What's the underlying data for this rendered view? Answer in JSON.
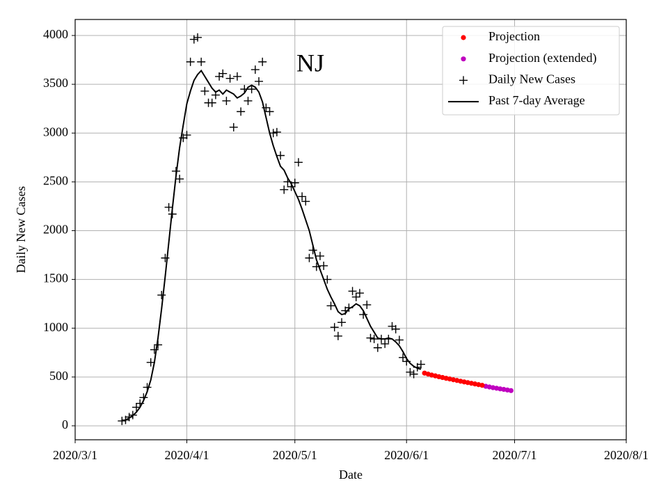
{
  "chart_data": {
    "type": "time-series",
    "title": "NJ",
    "x_label": "Date",
    "y_label": "Daily New Cases",
    "xlim": [
      "2020/3/1",
      "2020/8/1"
    ],
    "xticks": [
      "2020/3/1",
      "2020/4/1",
      "2020/5/1",
      "2020/6/1",
      "2020/7/1",
      "2020/8/1"
    ],
    "ylim": [
      -143,
      4164
    ],
    "yticks": [
      0,
      500,
      1000,
      1500,
      2000,
      2500,
      3000,
      3500,
      4000
    ],
    "grid": true,
    "legend": "upper right",
    "series": [
      {
        "name": "Projection",
        "color": "#ff0000",
        "marker": "o",
        "x": [
          "2020/6/6",
          "2020/6/7",
          "2020/6/8",
          "2020/6/9",
          "2020/6/10",
          "2020/6/11",
          "2020/6/12",
          "2020/6/13",
          "2020/6/14",
          "2020/6/15",
          "2020/6/16",
          "2020/6/17",
          "2020/6/18",
          "2020/6/19",
          "2020/6/20",
          "2020/6/21",
          "2020/6/22"
        ],
        "values": [
          540,
          530,
          520,
          512,
          503,
          495,
          487,
          480,
          472,
          465,
          457,
          450,
          443,
          436,
          429,
          422,
          415
        ]
      },
      {
        "name": "Projection (extended)",
        "color": "#bf00bf",
        "marker": "o",
        "x": [
          "2020/6/23",
          "2020/6/24",
          "2020/6/25",
          "2020/6/26",
          "2020/6/27",
          "2020/6/28",
          "2020/6/29",
          "2020/6/30"
        ],
        "values": [
          405,
          398,
          391,
          385,
          379,
          373,
          367,
          361
        ]
      },
      {
        "name": "Daily New Cases",
        "color": "#000000",
        "marker": "+",
        "x": [
          "2020/3/14",
          "2020/3/15",
          "2020/3/16",
          "2020/3/17",
          "2020/3/18",
          "2020/3/19",
          "2020/3/20",
          "2020/3/21",
          "2020/3/22",
          "2020/3/23",
          "2020/3/24",
          "2020/3/25",
          "2020/3/26",
          "2020/3/27",
          "2020/3/28",
          "2020/3/29",
          "2020/3/30",
          "2020/3/31",
          "2020/4/1",
          "2020/4/2",
          "2020/4/3",
          "2020/4/4",
          "2020/4/5",
          "2020/4/6",
          "2020/4/7",
          "2020/4/8",
          "2020/4/9",
          "2020/4/10",
          "2020/4/11",
          "2020/4/12",
          "2020/4/13",
          "2020/4/14",
          "2020/4/15",
          "2020/4/16",
          "2020/4/17",
          "2020/4/18",
          "2020/4/19",
          "2020/4/20",
          "2020/4/21",
          "2020/4/22",
          "2020/4/23",
          "2020/4/24",
          "2020/4/25",
          "2020/4/26",
          "2020/4/27",
          "2020/4/28",
          "2020/4/29",
          "2020/4/30",
          "2020/5/1",
          "2020/5/2",
          "2020/5/3",
          "2020/5/4",
          "2020/5/5",
          "2020/5/6",
          "2020/5/7",
          "2020/5/8",
          "2020/5/9",
          "2020/5/10",
          "2020/5/11",
          "2020/5/12",
          "2020/5/13",
          "2020/5/14",
          "2020/5/15",
          "2020/5/16",
          "2020/5/17",
          "2020/5/18",
          "2020/5/19",
          "2020/5/20",
          "2020/5/21",
          "2020/5/22",
          "2020/5/23",
          "2020/5/24",
          "2020/5/25",
          "2020/5/26",
          "2020/5/27",
          "2020/5/28",
          "2020/5/29",
          "2020/5/30",
          "2020/5/31",
          "2020/6/1",
          "2020/6/2",
          "2020/6/3",
          "2020/6/4",
          "2020/6/5"
        ],
        "values": [
          50,
          60,
          90,
          110,
          190,
          230,
          290,
          395,
          650,
          780,
          830,
          1340,
          1720,
          2240,
          2170,
          2610,
          2530,
          2950,
          2980,
          3730,
          3960,
          3980,
          3730,
          3430,
          3310,
          3310,
          3390,
          3580,
          3610,
          3330,
          3560,
          3060,
          3580,
          3220,
          3450,
          3330,
          3450,
          3650,
          3530,
          3730,
          3260,
          3220,
          3000,
          3010,
          2770,
          2420,
          2500,
          2450,
          2490,
          2700,
          2350,
          2300,
          1720,
          1800,
          1630,
          1740,
          1640,
          1500,
          1230,
          1010,
          920,
          1060,
          1180,
          1210,
          1380,
          1320,
          1360,
          1140,
          1240,
          900,
          890,
          800,
          890,
          840,
          890,
          1020,
          990,
          880,
          700,
          660,
          550,
          530,
          600,
          630
        ]
      },
      {
        "name": "Past 7-day Average",
        "color": "#000000",
        "marker": "line",
        "x": [
          "2020/3/14",
          "2020/3/15",
          "2020/3/16",
          "2020/3/17",
          "2020/3/18",
          "2020/3/19",
          "2020/3/20",
          "2020/3/21",
          "2020/3/22",
          "2020/3/23",
          "2020/3/24",
          "2020/3/25",
          "2020/3/26",
          "2020/3/27",
          "2020/3/28",
          "2020/3/29",
          "2020/3/30",
          "2020/3/31",
          "2020/4/1",
          "2020/4/2",
          "2020/4/3",
          "2020/4/4",
          "2020/4/5",
          "2020/4/6",
          "2020/4/7",
          "2020/4/8",
          "2020/4/9",
          "2020/4/10",
          "2020/4/11",
          "2020/4/12",
          "2020/4/13",
          "2020/4/14",
          "2020/4/15",
          "2020/4/16",
          "2020/4/17",
          "2020/4/18",
          "2020/4/19",
          "2020/4/20",
          "2020/4/21",
          "2020/4/22",
          "2020/4/23",
          "2020/4/24",
          "2020/4/25",
          "2020/4/26",
          "2020/4/27",
          "2020/4/28",
          "2020/4/29",
          "2020/4/30",
          "2020/5/1",
          "2020/5/2",
          "2020/5/3",
          "2020/5/4",
          "2020/5/5",
          "2020/5/6",
          "2020/5/7",
          "2020/5/8",
          "2020/5/9",
          "2020/5/10",
          "2020/5/11",
          "2020/5/12",
          "2020/5/13",
          "2020/5/14",
          "2020/5/15",
          "2020/5/16",
          "2020/5/17",
          "2020/5/18",
          "2020/5/19",
          "2020/5/20",
          "2020/5/21",
          "2020/5/22",
          "2020/5/23",
          "2020/5/24",
          "2020/5/25",
          "2020/5/26",
          "2020/5/27",
          "2020/5/28",
          "2020/5/29",
          "2020/5/30",
          "2020/5/31",
          "2020/6/1",
          "2020/6/2",
          "2020/6/3",
          "2020/6/4",
          "2020/6/5"
        ],
        "values": [
          50,
          60,
          80,
          105,
          140,
          190,
          260,
          350,
          470,
          650,
          900,
          1200,
          1530,
          1880,
          2230,
          2560,
          2850,
          3080,
          3300,
          3430,
          3540,
          3600,
          3640,
          3580,
          3520,
          3460,
          3420,
          3440,
          3400,
          3440,
          3420,
          3400,
          3360,
          3380,
          3410,
          3470,
          3490,
          3470,
          3420,
          3320,
          3160,
          3000,
          2870,
          2760,
          2660,
          2620,
          2540,
          2480,
          2400,
          2320,
          2220,
          2110,
          2000,
          1850,
          1700,
          1600,
          1500,
          1400,
          1320,
          1250,
          1170,
          1140,
          1150,
          1200,
          1220,
          1250,
          1230,
          1180,
          1100,
          1020,
          960,
          900,
          890,
          890,
          900,
          890,
          860,
          820,
          760,
          690,
          640,
          610,
          590,
          580
        ]
      }
    ]
  }
}
